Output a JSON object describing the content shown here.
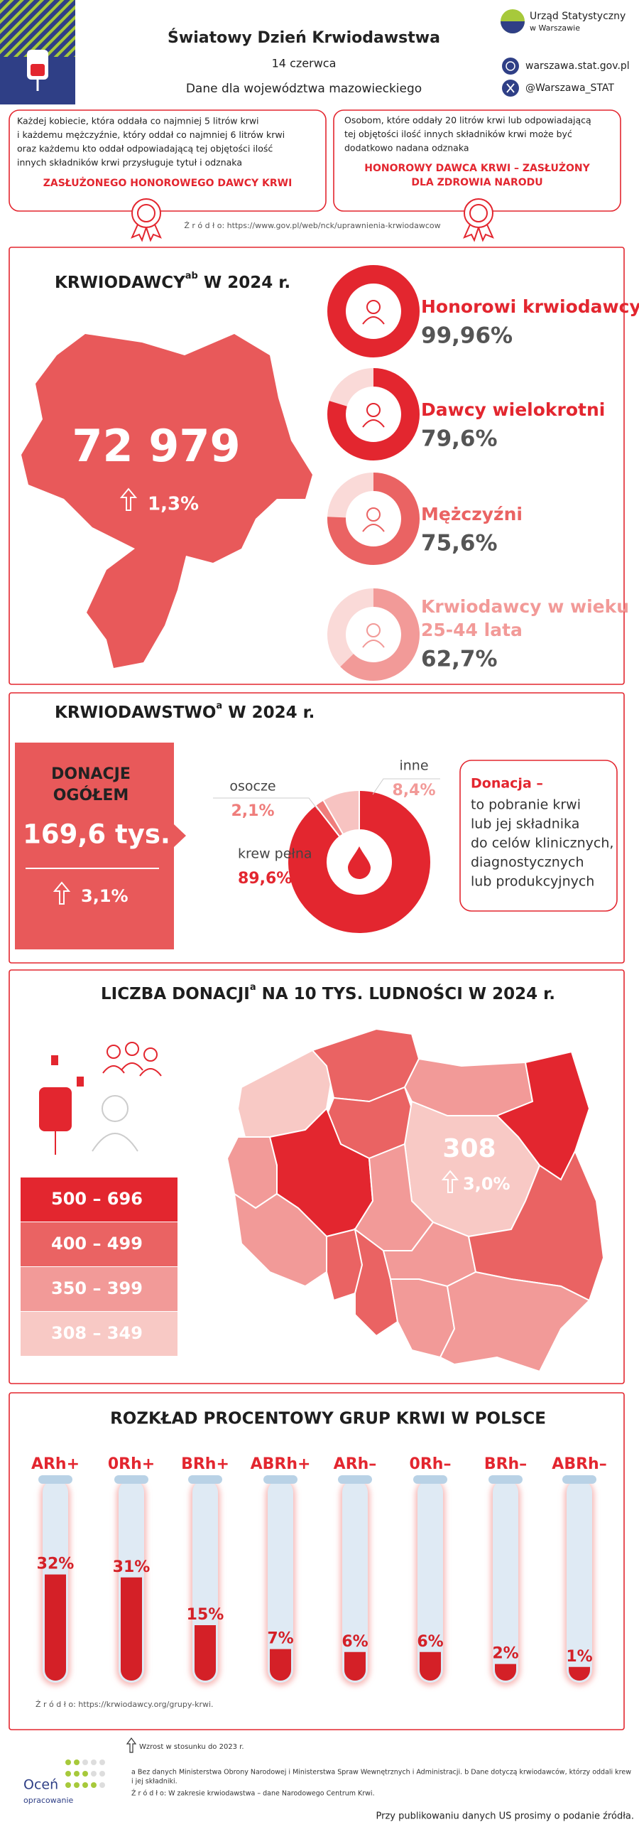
{
  "header": {
    "title": "Światowy Dzień Krwiodawstwa",
    "date": "14 czerwca",
    "region": "Dane dla województwa mazowieckiego",
    "org_name": [
      "Urząd Statystyczny",
      "w Warszawie"
    ],
    "website": "warszawa.stat.gov.pl",
    "twitter": "@Warszawa_STAT"
  },
  "badges": [
    {
      "lines": [
        "Każdej kobiecie, która oddała co najmniej 5 litrów krwi",
        "i każdemu mężczyźnie, który oddał co najmniej 6 litrów krwi",
        "oraz każdemu kto oddał odpowiadającą tej objętości ilość",
        "innych składników krwi przysługuje tytuł i odznaka"
      ],
      "highlight": [
        "ZASŁUŻONEGO HONOROWEGO DAWCY KRWI"
      ]
    },
    {
      "lines": [
        "Osobom, które oddały 20 litrów krwi lub odpowiadającą",
        "tej objętości ilość innych składników krwi może być",
        "dodatkowo nadana odznaka"
      ],
      "highlight": [
        "HONOROWY DAWCA KRWI – ZASŁUŻONY",
        "DLA ZDROWIA NARODU"
      ]
    }
  ],
  "badges_source": "Ź r ó d ł o: https://www.gov.pl/web/nck/uprawnienia-krwiodawcow",
  "donors": {
    "title": "KRWIODAWCY",
    "title_sup": "ab",
    "title_rest": " W 2024 r.",
    "total": "72 979",
    "change": "1,3%",
    "items": [
      {
        "label": [
          "Honorowi krwiodawcy"
        ],
        "value": 99.96,
        "value_label": "99,96%",
        "color": "#e3262f"
      },
      {
        "label": [
          "Dawcy wielokrotni"
        ],
        "value": 79.6,
        "value_label": "79,6%",
        "color": "#e3262f"
      },
      {
        "label": [
          "Mężczyźni"
        ],
        "value": 75.6,
        "value_label": "75,6%",
        "color": "#ea6363"
      },
      {
        "label": [
          "Krwiodawcy w wieku",
          "25-44 lata"
        ],
        "value": 62.7,
        "value_label": "62,7%",
        "color": "#f29a98"
      }
    ]
  },
  "donations": {
    "title": "KRWIODAWSTWO",
    "title_sup": "a",
    "title_rest": " W 2024 r.",
    "box_title": [
      "DONACJE",
      "OGÓŁEM"
    ],
    "total": "169,6 tys.",
    "change": "3,1%",
    "segments": [
      {
        "name": "krew pełna",
        "value": 89.6,
        "value_label": "89,6%",
        "color": "#e3262f"
      },
      {
        "name": "osocze",
        "value": 2.1,
        "value_label": "2,1%",
        "color": "#ef7d7b"
      },
      {
        "name": "inne",
        "value": 8.4,
        "value_label": "8,4%",
        "color": "#f7c3c1"
      }
    ],
    "definition_term": "Donacja –",
    "definition": [
      "to pobranie krwi",
      "lub jej składnika",
      "do celów klinicznych,",
      "diagnostycznych",
      "lub produkcyjnych"
    ]
  },
  "map": {
    "title": "LICZBA DONACJI",
    "title_sup": "a",
    "title_rest": " NA 10 TYS. LUDNOŚCI W 2024 r.",
    "legend": [
      {
        "label": "500 – 696",
        "color": "#e3262f"
      },
      {
        "label": "400 – 499",
        "color": "#ea6363"
      },
      {
        "label": "350 – 399",
        "color": "#f29a98"
      },
      {
        "label": "308 – 349",
        "color": "#f8c9c5"
      }
    ],
    "region_value": "308",
    "region_change": "3,0%"
  },
  "blood": {
    "title": "ROZKŁAD PROCENTOWY GRUP KRWI W POLSCE",
    "groups": [
      {
        "name": "ARh+",
        "value": 32,
        "value_label": "32%"
      },
      {
        "name": "0Rh+",
        "value": 31,
        "value_label": "31%"
      },
      {
        "name": "BRh+",
        "value": 15,
        "value_label": "15%"
      },
      {
        "name": "ABRh+",
        "value": 7,
        "value_label": "7%"
      },
      {
        "name": "ARh–",
        "value": 6,
        "value_label": "6%"
      },
      {
        "name": "0Rh–",
        "value": 6,
        "value_label": "6%"
      },
      {
        "name": "BRh–",
        "value": 2,
        "value_label": "2%"
      },
      {
        "name": "ABRh–",
        "value": 1,
        "value_label": "1%"
      }
    ],
    "source": "Ź r ó d ł o: https://krwiodawcy.org/grupy-krwi."
  },
  "footer": {
    "rate": [
      "Oceń",
      "opracowanie"
    ],
    "arrow_note": "Wzrost w stosunku do 2023 r.",
    "notes": [
      "a Bez danych Ministerstwa Obrony Narodowej i Ministerstwa Spraw Wewnętrznych i Administracji. b Dane dotyczą krwiodawców, którzy oddali krew",
      "i jej składniki."
    ],
    "source": "Ź r ó d ł o: W zakresie krwiodawstwa – dane  Narodowego Centrum Krwi.",
    "publish": "Przy publikowaniu danych US prosimy o podanie źródła."
  }
}
